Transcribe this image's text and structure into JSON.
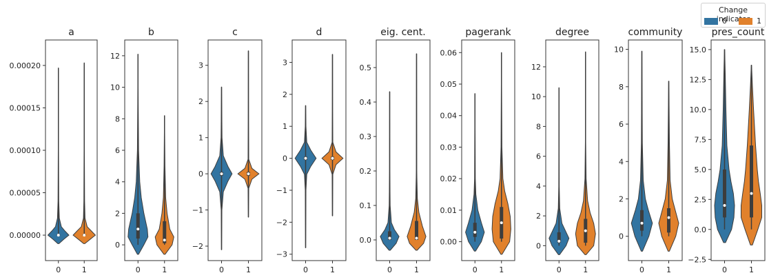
{
  "chart_data": {
    "type": "violin",
    "colors": {
      "0": "#3274a1",
      "1": "#e1812c"
    },
    "legend": {
      "title": "Change indicator",
      "entries": [
        "0",
        "1"
      ],
      "placement": "top-right"
    },
    "categories": [
      "0",
      "1"
    ],
    "panels": [
      {
        "title": "a",
        "yticks": [
          "0.00000",
          "0.00005",
          "0.00010",
          "0.00015",
          "0.00020"
        ],
        "ytick_values": [
          0,
          5e-05,
          0.0001,
          0.00015,
          0.0002
        ],
        "ylim": [
          -3e-05,
          0.00023
        ],
        "violins": [
          {
            "category": "0",
            "min": 0,
            "max": 0.000197,
            "q1": 0,
            "median": 0,
            "q3": 1e-06,
            "profile": [
              [
                -1e-05,
                0.05
              ],
              [
                -5e-06,
                0.45
              ],
              [
                0,
                0.9
              ],
              [
                5e-06,
                0.55
              ],
              [
                1e-05,
                0.25
              ],
              [
                2e-05,
                0.08
              ],
              [
                4e-05,
                0.03
              ],
              [
                0.0001,
                0.012
              ],
              [
                0.000197,
                0.004
              ]
            ]
          },
          {
            "category": "1",
            "min": 0,
            "max": 0.000203,
            "q1": 0,
            "median": 0,
            "q3": 1e-06,
            "profile": [
              [
                -1e-05,
                0.05
              ],
              [
                -5e-06,
                0.5
              ],
              [
                0,
                0.95
              ],
              [
                5e-06,
                0.6
              ],
              [
                1e-05,
                0.25
              ],
              [
                2e-05,
                0.07
              ],
              [
                4e-05,
                0.03
              ],
              [
                0.0001,
                0.012
              ],
              [
                0.000203,
                0.004
              ]
            ]
          }
        ]
      },
      {
        "title": "b",
        "yticks": [
          "0",
          "2",
          "4",
          "6",
          "8",
          "10",
          "12"
        ],
        "ytick_values": [
          0,
          2,
          4,
          6,
          8,
          10,
          12
        ],
        "ylim": [
          -1.0,
          13.0
        ],
        "violins": [
          {
            "category": "0",
            "min": 0,
            "max": 12.1,
            "q1": 0.4,
            "median": 1.0,
            "q3": 2.0,
            "profile": [
              [
                -0.6,
                0.05
              ],
              [
                0,
                0.5
              ],
              [
                0.5,
                0.85
              ],
              [
                1.0,
                0.8
              ],
              [
                2.0,
                0.5
              ],
              [
                3.0,
                0.28
              ],
              [
                4.0,
                0.15
              ],
              [
                6.0,
                0.05
              ],
              [
                9.0,
                0.02
              ],
              [
                12.1,
                0.005
              ]
            ]
          },
          {
            "category": "1",
            "min": 0,
            "max": 8.2,
            "q1": 0.1,
            "median": 0.3,
            "q3": 1.5,
            "profile": [
              [
                -0.6,
                0.05
              ],
              [
                0,
                0.65
              ],
              [
                0.5,
                0.8
              ],
              [
                1.0,
                0.45
              ],
              [
                2.0,
                0.22
              ],
              [
                3.0,
                0.1
              ],
              [
                5.0,
                0.04
              ],
              [
                8.2,
                0.005
              ]
            ]
          }
        ]
      },
      {
        "title": "c",
        "yticks": [
          "−2",
          "−1",
          "0",
          "1",
          "2",
          "3"
        ],
        "ytick_values": [
          -2,
          -1,
          0,
          1,
          2,
          3
        ],
        "ylim": [
          -2.4,
          3.7
        ],
        "violins": [
          {
            "category": "0",
            "min": -2.1,
            "max": 2.4,
            "q1": -0.05,
            "median": 0,
            "q3": 0.05,
            "profile": [
              [
                -2.1,
                0.005
              ],
              [
                -1.0,
                0.03
              ],
              [
                -0.5,
                0.15
              ],
              [
                -0.2,
                0.55
              ],
              [
                0,
                0.9
              ],
              [
                0.2,
                0.55
              ],
              [
                0.5,
                0.15
              ],
              [
                1.0,
                0.04
              ],
              [
                2.4,
                0.005
              ]
            ]
          },
          {
            "category": "1",
            "min": -1.2,
            "max": 3.4,
            "q1": -0.05,
            "median": 0,
            "q3": 0.05,
            "profile": [
              [
                -1.2,
                0.005
              ],
              [
                -0.4,
                0.03
              ],
              [
                -0.15,
                0.3
              ],
              [
                0,
                0.9
              ],
              [
                0.15,
                0.3
              ],
              [
                0.4,
                0.03
              ],
              [
                1.5,
                0.01
              ],
              [
                3.4,
                0.005
              ]
            ]
          }
        ]
      },
      {
        "title": "d",
        "yticks": [
          "−3",
          "−2",
          "−1",
          "0",
          "1",
          "2",
          "3"
        ],
        "ytick_values": [
          -3,
          -2,
          -1,
          0,
          1,
          2,
          3
        ],
        "ylim": [
          -3.2,
          3.7
        ],
        "violins": [
          {
            "category": "0",
            "min": -2.8,
            "max": 1.65,
            "q1": -0.05,
            "median": 0,
            "q3": 0.05,
            "profile": [
              [
                -2.8,
                0.005
              ],
              [
                -1.0,
                0.03
              ],
              [
                -0.5,
                0.1
              ],
              [
                -0.25,
                0.45
              ],
              [
                0,
                0.9
              ],
              [
                0.25,
                0.45
              ],
              [
                0.5,
                0.1
              ],
              [
                1.0,
                0.03
              ],
              [
                1.65,
                0.005
              ]
            ]
          },
          {
            "category": "1",
            "min": -1.8,
            "max": 3.25,
            "q1": -0.05,
            "median": 0,
            "q3": 0.05,
            "profile": [
              [
                -1.8,
                0.005
              ],
              [
                -0.5,
                0.03
              ],
              [
                -0.2,
                0.3
              ],
              [
                0,
                0.9
              ],
              [
                0.2,
                0.3
              ],
              [
                0.5,
                0.03
              ],
              [
                1.5,
                0.01
              ],
              [
                3.25,
                0.005
              ]
            ]
          }
        ]
      },
      {
        "title": "eig. cent.",
        "yticks": [
          "0.0",
          "0.1",
          "0.2",
          "0.3",
          "0.4",
          "0.5"
        ],
        "ytick_values": [
          0,
          0.1,
          0.2,
          0.3,
          0.4,
          0.5
        ],
        "ylim": [
          -0.06,
          0.58
        ],
        "violins": [
          {
            "category": "0",
            "min": 0,
            "max": 0.43,
            "q1": 0.0,
            "median": 0.005,
            "q3": 0.025,
            "profile": [
              [
                -0.03,
                0.05
              ],
              [
                -0.01,
                0.55
              ],
              [
                0.01,
                0.8
              ],
              [
                0.03,
                0.4
              ],
              [
                0.05,
                0.15
              ],
              [
                0.1,
                0.04
              ],
              [
                0.2,
                0.01
              ],
              [
                0.43,
                0.004
              ]
            ]
          },
          {
            "category": "1",
            "min": 0,
            "max": 0.54,
            "q1": 0.0,
            "median": 0.005,
            "q3": 0.055,
            "profile": [
              [
                -0.03,
                0.05
              ],
              [
                -0.01,
                0.6
              ],
              [
                0.01,
                0.8
              ],
              [
                0.04,
                0.5
              ],
              [
                0.08,
                0.2
              ],
              [
                0.12,
                0.07
              ],
              [
                0.2,
                0.02
              ],
              [
                0.54,
                0.004
              ]
            ]
          }
        ]
      },
      {
        "title": "pagerank",
        "yticks": [
          "0.00",
          "0.01",
          "0.02",
          "0.03",
          "0.04",
          "0.05",
          "0.06"
        ],
        "ytick_values": [
          0,
          0.01,
          0.02,
          0.03,
          0.04,
          0.05,
          0.06
        ],
        "ylim": [
          -0.006,
          0.064
        ],
        "violins": [
          {
            "category": "0",
            "min": 0,
            "max": 0.047,
            "q1": 0.0015,
            "median": 0.003,
            "q3": 0.006,
            "profile": [
              [
                -0.003,
                0.05
              ],
              [
                0,
                0.55
              ],
              [
                0.003,
                0.8
              ],
              [
                0.006,
                0.55
              ],
              [
                0.01,
                0.25
              ],
              [
                0.015,
                0.08
              ],
              [
                0.02,
                0.03
              ],
              [
                0.047,
                0.005
              ]
            ]
          },
          {
            "category": "1",
            "min": 0,
            "max": 0.06,
            "q1": 0.001,
            "median": 0.006,
            "q3": 0.011,
            "profile": [
              [
                -0.004,
                0.05
              ],
              [
                0,
                0.7
              ],
              [
                0.004,
                0.8
              ],
              [
                0.008,
                0.75
              ],
              [
                0.012,
                0.55
              ],
              [
                0.016,
                0.28
              ],
              [
                0.02,
                0.12
              ],
              [
                0.03,
                0.04
              ],
              [
                0.06,
                0.005
              ]
            ]
          }
        ]
      },
      {
        "title": "degree",
        "yticks": [
          "0",
          "2",
          "4",
          "6",
          "8",
          "10",
          "12"
        ],
        "ytick_values": [
          0,
          2,
          4,
          6,
          8,
          10,
          12
        ],
        "ylim": [
          -1.0,
          13.8
        ],
        "violins": [
          {
            "category": "0",
            "min": 0,
            "max": 10.6,
            "q1": 0.2,
            "median": 0.3,
            "q3": 0.9,
            "profile": [
              [
                -0.6,
                0.05
              ],
              [
                0,
                0.6
              ],
              [
                0.5,
                0.85
              ],
              [
                1.0,
                0.55
              ],
              [
                1.5,
                0.25
              ],
              [
                2.5,
                0.06
              ],
              [
                4.0,
                0.02
              ],
              [
                10.6,
                0.005
              ]
            ]
          },
          {
            "category": "1",
            "min": 0,
            "max": 13.0,
            "q1": 0.2,
            "median": 1.0,
            "q3": 1.8,
            "profile": [
              [
                -0.6,
                0.05
              ],
              [
                0,
                0.7
              ],
              [
                0.8,
                0.85
              ],
              [
                1.5,
                0.7
              ],
              [
                2.2,
                0.4
              ],
              [
                3.0,
                0.18
              ],
              [
                4.5,
                0.05
              ],
              [
                7.0,
                0.015
              ],
              [
                13.0,
                0.005
              ]
            ]
          }
        ]
      },
      {
        "title": "community",
        "yticks": [
          "0",
          "2",
          "4",
          "6",
          "8",
          "10"
        ],
        "ytick_values": [
          0,
          2,
          4,
          6,
          8,
          10
        ],
        "ylim": [
          -1.3,
          10.5
        ],
        "violins": [
          {
            "category": "0",
            "min": 0,
            "max": 9.9,
            "q1": 0.3,
            "median": 0.7,
            "q3": 1.4,
            "profile": [
              [
                -0.8,
                0.05
              ],
              [
                0,
                0.6
              ],
              [
                0.7,
                0.9
              ],
              [
                1.4,
                0.55
              ],
              [
                2.0,
                0.3
              ],
              [
                3.0,
                0.12
              ],
              [
                5.0,
                0.04
              ],
              [
                9.9,
                0.005
              ]
            ]
          },
          {
            "category": "1",
            "min": 0,
            "max": 8.3,
            "q1": 0.2,
            "median": 1.0,
            "q3": 1.5,
            "profile": [
              [
                -0.8,
                0.05
              ],
              [
                0,
                0.6
              ],
              [
                0.7,
                0.85
              ],
              [
                1.4,
                0.55
              ],
              [
                2.0,
                0.3
              ],
              [
                3.0,
                0.12
              ],
              [
                5.0,
                0.06
              ],
              [
                7.0,
                0.03
              ],
              [
                8.3,
                0.005
              ]
            ]
          }
        ]
      },
      {
        "title": "pres_count",
        "yticks": [
          "−2.5",
          "0.0",
          "2.5",
          "5.0",
          "7.5",
          "10.0",
          "12.5",
          "15.0"
        ],
        "ytick_values": [
          -2.5,
          0,
          2.5,
          5,
          7.5,
          10,
          12.5,
          15
        ],
        "ylim": [
          -2.6,
          15.8
        ],
        "violins": [
          {
            "category": "0",
            "min": 0,
            "max": 15.0,
            "q1": 1.0,
            "median": 2.0,
            "q3": 5.0,
            "profile": [
              [
                -1.1,
                0.08
              ],
              [
                0,
                0.6
              ],
              [
                1.0,
                0.8
              ],
              [
                2.0,
                0.85
              ],
              [
                3.0,
                0.75
              ],
              [
                4.0,
                0.55
              ],
              [
                5.0,
                0.38
              ],
              [
                7.0,
                0.2
              ],
              [
                10.0,
                0.12
              ],
              [
                13.0,
                0.06
              ],
              [
                15.0,
                0.01
              ]
            ]
          },
          {
            "category": "1",
            "min": 0,
            "max": 13.7,
            "q1": 1.0,
            "median": 3.0,
            "q3": 7.0,
            "profile": [
              [
                -1.3,
                0.08
              ],
              [
                0,
                0.55
              ],
              [
                1.0,
                0.88
              ],
              [
                2.0,
                0.88
              ],
              [
                3.0,
                0.75
              ],
              [
                4.0,
                0.6
              ],
              [
                5.0,
                0.5
              ],
              [
                7.0,
                0.35
              ],
              [
                10.0,
                0.18
              ],
              [
                12.0,
                0.08
              ],
              [
                13.7,
                0.01
              ]
            ]
          }
        ]
      }
    ]
  }
}
